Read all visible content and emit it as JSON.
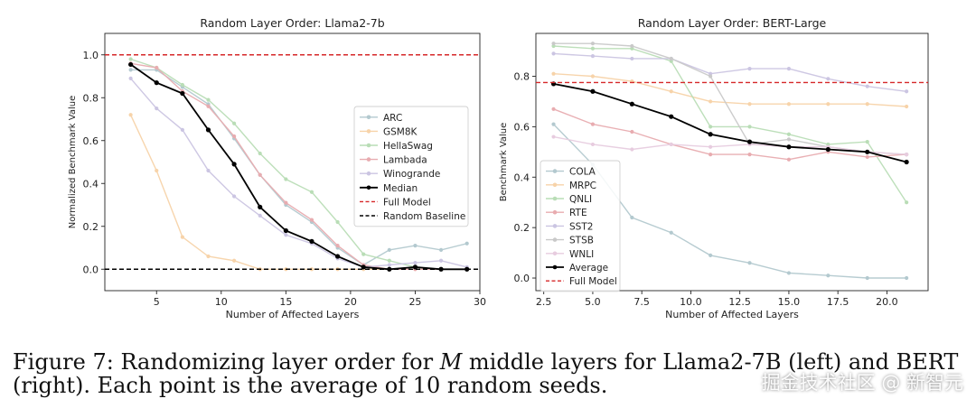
{
  "chart_data": [
    {
      "type": "line",
      "title": "Random Layer Order: Llama2-7b",
      "xlabel": "Number of Affected Layers",
      "ylabel": "Normalized Benchmark Value",
      "xlim": [
        1,
        30
      ],
      "ylim": [
        -0.1,
        1.1
      ],
      "xticks": [
        5,
        10,
        15,
        20,
        25,
        30
      ],
      "yticks": [
        0.0,
        0.2,
        0.4,
        0.6,
        0.8,
        1.0
      ],
      "ytick_labels": [
        "0.0",
        "0.2",
        "0.4",
        "0.6",
        "0.8",
        "1.0"
      ],
      "legend_position": "center-right",
      "x": [
        3,
        5,
        7,
        9,
        11,
        13,
        15,
        17,
        19,
        21,
        23,
        25,
        27,
        29
      ],
      "series": [
        {
          "name": "ARC",
          "color": "#b3c9cf",
          "values": [
            0.93,
            0.93,
            0.85,
            0.77,
            0.61,
            0.44,
            0.3,
            0.22,
            0.1,
            0.02,
            0.09,
            0.11,
            0.09,
            0.12
          ]
        },
        {
          "name": "GSM8K",
          "color": "#f7d3a9",
          "values": [
            0.72,
            0.46,
            0.15,
            0.06,
            0.04,
            0.0,
            0.0,
            0.0,
            0.0,
            0.0,
            0.0,
            0.0,
            0.0,
            0.0
          ]
        },
        {
          "name": "HellaSwag",
          "color": "#b9ddb6",
          "values": [
            0.98,
            0.94,
            0.86,
            0.79,
            0.68,
            0.54,
            0.42,
            0.36,
            0.22,
            0.07,
            0.04,
            0.01,
            0.0,
            0.0
          ]
        },
        {
          "name": "Lambada",
          "color": "#e8acb0",
          "values": [
            0.96,
            0.94,
            0.83,
            0.76,
            0.62,
            0.44,
            0.31,
            0.23,
            0.11,
            0.02,
            0.0,
            0.0,
            0.0,
            0.0
          ]
        },
        {
          "name": "Winogrande",
          "color": "#cbc5e2",
          "values": [
            0.89,
            0.75,
            0.65,
            0.46,
            0.34,
            0.25,
            0.16,
            0.12,
            0.05,
            0.01,
            0.02,
            0.03,
            0.04,
            0.01
          ]
        },
        {
          "name": "Median",
          "color": "#000000",
          "values": [
            0.955,
            0.87,
            0.82,
            0.65,
            0.49,
            0.29,
            0.18,
            0.13,
            0.06,
            0.01,
            0.0,
            0.01,
            0.0,
            0.0
          ]
        }
      ],
      "hlines": [
        {
          "name": "Full Model",
          "value": 1.0,
          "color": "#d62728",
          "style": "dashed"
        },
        {
          "name": "Random Baseline",
          "value": 0.0,
          "color": "#000000",
          "style": "dashed"
        }
      ]
    },
    {
      "type": "line",
      "title": "Random Layer Order: BERT-Large",
      "xlabel": "Number of Affected Layers",
      "ylabel": "Benchmark Value",
      "xlim": [
        2.1,
        22.1
      ],
      "ylim": [
        -0.05,
        0.97
      ],
      "xticks": [
        2.5,
        5.0,
        7.5,
        10.0,
        12.5,
        15.0,
        17.5,
        20.0
      ],
      "xtick_labels": [
        "2.5",
        "5.0",
        "7.5",
        "10.0",
        "12.5",
        "15.0",
        "17.5",
        "20.0"
      ],
      "yticks": [
        0.0,
        0.2,
        0.4,
        0.6,
        0.8
      ],
      "ytick_labels": [
        "0.0",
        "0.2",
        "0.4",
        "0.6",
        "0.8"
      ],
      "legend_position": "lower-left",
      "x": [
        3,
        5,
        7,
        9,
        11,
        13,
        15,
        17,
        19,
        21
      ],
      "series": [
        {
          "name": "COLA",
          "color": "#b3c9cf",
          "values": [
            0.61,
            0.45,
            0.24,
            0.18,
            0.09,
            0.06,
            0.02,
            0.01,
            0.0,
            0.0
          ]
        },
        {
          "name": "MRPC",
          "color": "#f7d3a9",
          "values": [
            0.81,
            0.8,
            0.78,
            0.74,
            0.7,
            0.69,
            0.69,
            0.69,
            0.69,
            0.68
          ]
        },
        {
          "name": "QNLI",
          "color": "#b9ddb6",
          "values": [
            0.92,
            0.91,
            0.91,
            0.86,
            0.6,
            0.6,
            0.57,
            0.53,
            0.54,
            0.3
          ]
        },
        {
          "name": "RTE",
          "color": "#e8acb0",
          "values": [
            0.67,
            0.61,
            0.58,
            0.53,
            0.49,
            0.49,
            0.47,
            0.5,
            0.48,
            0.49
          ]
        },
        {
          "name": "SST2",
          "color": "#cbc5e2",
          "values": [
            0.89,
            0.88,
            0.87,
            0.87,
            0.81,
            0.83,
            0.83,
            0.79,
            0.76,
            0.74
          ]
        },
        {
          "name": "STSB",
          "color": "#c9c9c9",
          "values": [
            0.93,
            0.93,
            0.92,
            0.87,
            0.8,
            0.53,
            0.55,
            0.52,
            0.5,
            0.49
          ]
        },
        {
          "name": "WNLI",
          "color": "#e7ccdf",
          "values": [
            0.56,
            0.53,
            0.51,
            0.53,
            0.52,
            0.53,
            0.52,
            0.52,
            0.5,
            0.49
          ]
        },
        {
          "name": "Average",
          "color": "#000000",
          "values": [
            0.77,
            0.74,
            0.69,
            0.64,
            0.57,
            0.54,
            0.52,
            0.51,
            0.5,
            0.46
          ]
        }
      ],
      "hlines": [
        {
          "name": "Full Model",
          "value": 0.775,
          "color": "#d62728",
          "style": "dashed"
        }
      ]
    }
  ],
  "caption": {
    "prefix": "Figure 7:  Randomizing layer order for ",
    "variable": "M",
    "suffix": " middle layers for Llama2-7B (left) and BERT",
    "line2": "(right). Each point is the average of 10 random seeds."
  },
  "watermark": "掘金技术社区 @ 新智元"
}
